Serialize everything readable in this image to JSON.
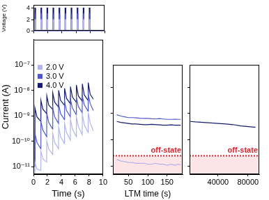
{
  "chart_data": [
    {
      "type": "line",
      "ylabel": "Voltage (V)",
      "x": [
        0,
        0.2,
        0.2,
        0.3,
        0.3,
        1.05,
        1.05,
        1.15,
        1.15,
        1.9,
        1.9,
        2.0,
        2.0,
        2.75,
        2.75,
        2.85,
        2.85,
        3.6,
        3.6,
        3.7,
        3.7,
        4.45,
        4.45,
        4.55,
        4.55,
        5.3,
        5.3,
        5.4,
        5.4,
        6.15,
        6.15,
        6.25,
        6.25,
        7.0,
        7.0,
        7.1,
        7.1,
        7.85,
        7.85,
        7.95,
        7.95,
        10
      ],
      "series": [
        {
          "name": "2.0 V",
          "color": "#b4b4ea",
          "values": [
            0,
            0,
            2,
            2,
            0,
            0,
            2,
            2,
            0,
            0,
            2,
            2,
            0,
            0,
            2,
            2,
            0,
            0,
            2,
            2,
            0,
            0,
            2,
            2,
            0,
            0,
            2,
            2,
            0,
            0,
            2,
            2,
            0,
            0,
            2,
            2,
            0,
            0,
            2,
            2,
            0,
            0
          ]
        },
        {
          "name": "3.0 V",
          "color": "#4f58c9",
          "values": [
            0,
            0,
            3,
            3,
            0,
            0,
            3,
            3,
            0,
            0,
            3,
            3,
            0,
            0,
            3,
            3,
            0,
            0,
            3,
            3,
            0,
            0,
            3,
            3,
            0,
            0,
            3,
            3,
            0,
            0,
            3,
            3,
            0,
            0,
            3,
            3,
            0,
            0,
            3,
            3,
            0,
            0
          ]
        },
        {
          "name": "4.0 V",
          "color": "#161c6b",
          "values": [
            0,
            0,
            4,
            4,
            0,
            0,
            4,
            4,
            0,
            0,
            4,
            4,
            0,
            0,
            4,
            4,
            0,
            0,
            4,
            4,
            0,
            0,
            4,
            4,
            0,
            0,
            4,
            4,
            0,
            0,
            4,
            4,
            0,
            0,
            4,
            4,
            0,
            0,
            4,
            4,
            0,
            0
          ]
        }
      ],
      "xlim": [
        0,
        10
      ],
      "xticks": [
        0,
        2,
        4,
        6,
        8,
        10
      ],
      "ylim": [
        0,
        4.5
      ],
      "yticks": [
        0,
        2,
        4
      ],
      "tick_labels": "y",
      "grid": false
    },
    {
      "type": "line",
      "xlabel": "Time (s)",
      "ylabel": "Current (A)",
      "log": "y",
      "legend": "upper left",
      "x": [
        0,
        0.2,
        0.22,
        0.5,
        1.05,
        1.07,
        1.35,
        1.9,
        1.92,
        2.2,
        2.75,
        2.77,
        3.05,
        3.6,
        3.62,
        3.9,
        4.45,
        4.47,
        4.75,
        5.3,
        5.32,
        5.6,
        6.15,
        6.17,
        6.45,
        7.0,
        7.02,
        7.3,
        7.85,
        7.87,
        8.15,
        8.6
      ],
      "series": [
        {
          "name": "2.0 V",
          "color": "#b4b4ea",
          "values": [
            5e-12,
            5e-12,
            1.5e-11,
            8e-12,
            7e-12,
            4e-11,
            2e-11,
            1.5e-11,
            1e-10,
            5e-11,
            3e-11,
            2e-10,
            9e-11,
            5e-11,
            3.5e-10,
            1.5e-10,
            8e-11,
            5e-10,
            2.2e-10,
            1.1e-10,
            7e-10,
            3e-10,
            1.5e-10,
            9e-10,
            3.8e-10,
            1.8e-10,
            1.1e-09,
            4.5e-10,
            2.2e-10,
            1.3e-09,
            5.2e-10,
            2.5e-10
          ]
        },
        {
          "name": "3.0 V",
          "color": "#4f58c9",
          "values": [
            1e-11,
            1e-11,
            2e-10,
            9e-11,
            5e-11,
            6e-10,
            2.7e-10,
            1.5e-10,
            1.2e-09,
            5.4e-10,
            3e-10,
            2e-09,
            9e-10,
            5e-10,
            2.8e-09,
            1.2e-09,
            7e-10,
            3.6e-09,
            1.6e-09,
            9e-10,
            4.4e-09,
            2e-09,
            1.1e-09,
            5.2e-09,
            2.3e-09,
            1.3e-09,
            6e-09,
            2.7e-09,
            1.5e-09,
            7e-09,
            3e-09,
            1.6e-09
          ]
        },
        {
          "name": "4.0 V",
          "color": "#161c6b",
          "values": [
            1e-11,
            1e-11,
            2e-09,
            9e-10,
            6e-10,
            4e-09,
            1.8e-09,
            1.2e-09,
            6e-09,
            2.6e-09,
            1.8e-09,
            8e-09,
            3.4e-09,
            2.2e-09,
            1e-08,
            4e-09,
            2.6e-09,
            1.2e-08,
            4.8e-09,
            3e-09,
            1.4e-08,
            5.4e-09,
            3.4e-09,
            1.6e-08,
            6e-09,
            3.8e-09,
            1.8e-08,
            6.6e-09,
            4e-09,
            2e-08,
            7e-09,
            4.5e-09
          ]
        }
      ],
      "xlim": [
        0,
        10
      ],
      "xticks": [
        0,
        2,
        4,
        6,
        8,
        10
      ],
      "ylim": [
        5e-12,
        1e-06
      ],
      "yticks": [
        {
          "value": 1e-11,
          "label": "10⁻¹¹"
        },
        {
          "value": 1e-10,
          "label": "10⁻¹⁰"
        },
        {
          "value": 1e-09,
          "label": "10⁻⁹"
        },
        {
          "value": 1e-08,
          "label": "10⁻⁸"
        },
        {
          "value": 1e-07,
          "label": "10⁻⁷"
        }
      ],
      "grid": false
    },
    {
      "type": "line",
      "xlabel": "LTM time (s)",
      "log": "y",
      "x": [
        20,
        30,
        40,
        50,
        60,
        70,
        80,
        90,
        100,
        110,
        120,
        130,
        140,
        150,
        160,
        170,
        180,
        185
      ],
      "series": [
        {
          "name": "2.0 V",
          "color": "#b4b4ea",
          "values": [
            1.8e-11,
            1.6e-11,
            1.5e-11,
            1.4e-11,
            1.4e-11,
            1.3e-11,
            1.3e-11,
            1.3e-11,
            1.2e-11,
            1.2e-11,
            1.3e-11,
            1.2e-11,
            1.2e-11,
            1.1e-11,
            1.2e-11,
            1.1e-11,
            1.2e-11,
            1.1e-11
          ]
        },
        {
          "name": "3.0 V",
          "color": "#4f58c9",
          "values": [
            9e-10,
            8e-10,
            7.5e-10,
            7e-10,
            7e-10,
            6.8e-10,
            6.6e-10,
            6.5e-10,
            6.5e-10,
            6.3e-10,
            6.2e-10,
            6.4e-10,
            6.2e-10,
            6e-10,
            6e-10,
            6.1e-10,
            6e-10,
            6e-10
          ]
        },
        {
          "name": "4.0 V",
          "color": "#161c6b",
          "values": [
            5e-10,
            4.6e-10,
            4.4e-10,
            4.2e-10,
            4e-10,
            4e-10,
            3.9e-10,
            3.8e-10,
            3.8e-10,
            3.9e-10,
            3.8e-10,
            3.7e-10,
            3.6e-10,
            3.6e-10,
            3.7e-10,
            3.6e-10,
            3.6e-10,
            3.6e-10
          ]
        }
      ],
      "annotations": [
        {
          "text": "off-state",
          "y": 2.5e-11,
          "color": "#e0202a",
          "line_style": "dotted"
        }
      ],
      "xlim": [
        10,
        190
      ],
      "xticks": [
        50,
        100,
        150
      ],
      "ylim": [
        5e-12,
        7e-08
      ],
      "yticks": [
        1e-11,
        1e-10,
        1e-09,
        1e-08
      ],
      "tick_labels": "x",
      "grid": false
    },
    {
      "type": "line",
      "log": "y",
      "x": [
        3000,
        10000,
        20000,
        30000,
        40000,
        50000,
        60000,
        70000,
        80000,
        90000
      ],
      "series": [
        {
          "name": "4.0 V",
          "color": "#161c6b",
          "values": [
            5e-10,
            4.8e-10,
            4.6e-10,
            4.4e-10,
            4.2e-10,
            4e-10,
            3.8e-10,
            3.4e-10,
            3.2e-10,
            3e-10
          ]
        }
      ],
      "annotations": [
        {
          "text": "off-state",
          "y": 2.5e-11,
          "color": "#e0202a",
          "line_style": "dotted"
        }
      ],
      "xlim": [
        2000,
        95000
      ],
      "xticks": [
        40000,
        80000
      ],
      "ylim": [
        5e-12,
        7e-08
      ],
      "yticks": [
        1e-11,
        1e-10,
        1e-09,
        1e-08
      ],
      "tick_labels": "x",
      "grid": false
    }
  ]
}
